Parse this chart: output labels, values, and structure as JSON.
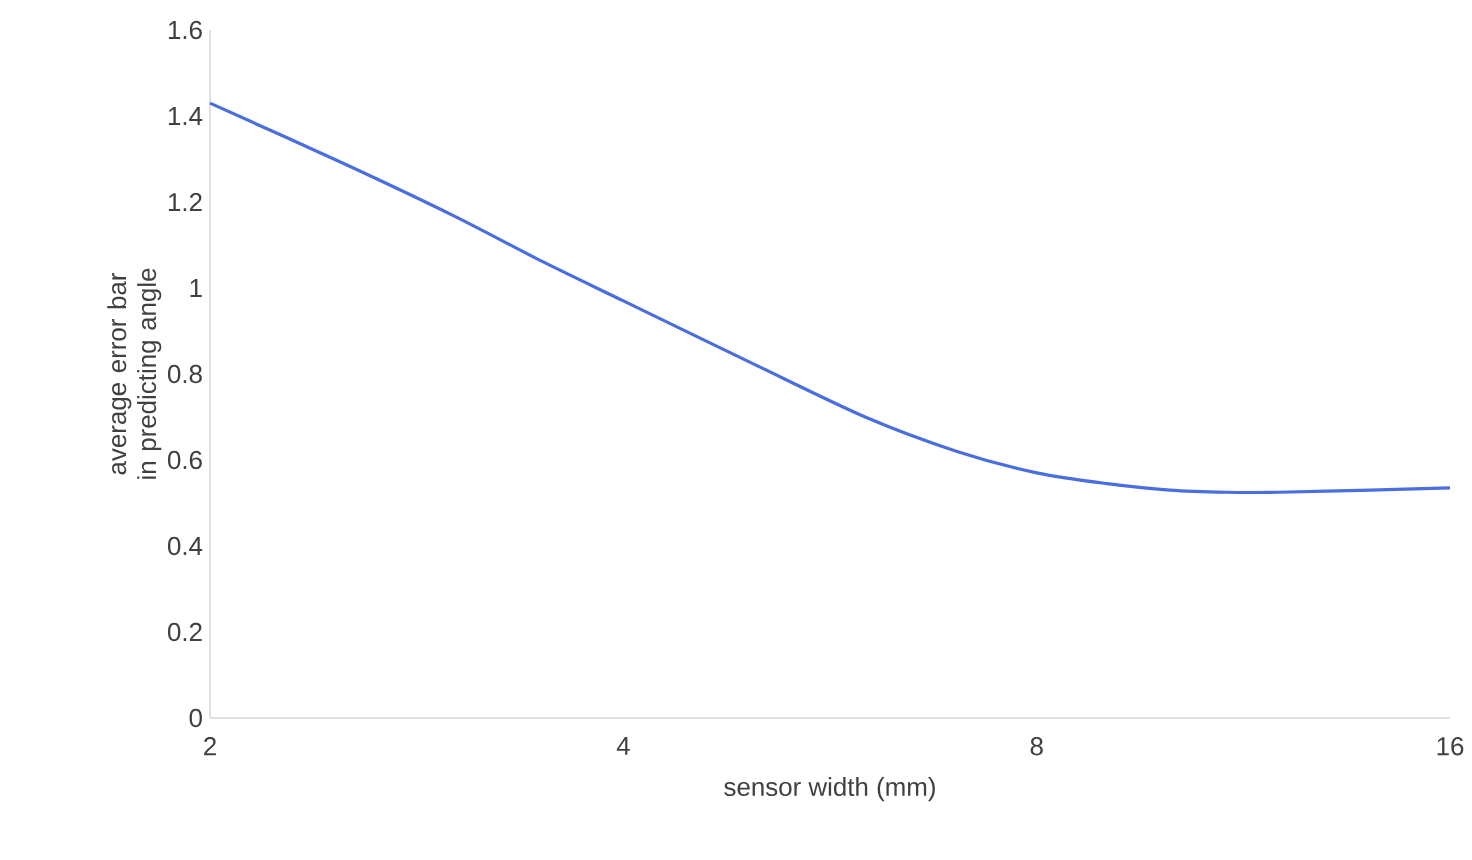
{
  "chart_data": {
    "type": "line",
    "xlabel": "sensor width (mm)",
    "ylabel": "average error bar in predicting angle",
    "log": "x",
    "x": [
      2,
      2.5,
      3,
      3.5,
      4,
      5,
      6,
      7,
      8,
      9,
      10,
      11,
      12,
      14,
      16
    ],
    "series": [
      {
        "color": "#4a6ee0",
        "values": [
          1.43,
          1.29,
          1.17,
          1.06,
          0.97,
          0.82,
          0.7,
          0.62,
          0.57,
          0.545,
          0.53,
          0.525,
          0.525,
          0.53,
          0.535
        ]
      }
    ],
    "xlim": [
      2,
      16
    ],
    "xticks": [
      2,
      4,
      8,
      16
    ],
    "ylim": [
      0,
      1.6
    ],
    "yticks": [
      0,
      0.2,
      0.4,
      0.6,
      0.8,
      1,
      1.2,
      1.4,
      1.6
    ],
    "grid": false,
    "marker": "none",
    "line_style": "solid"
  }
}
